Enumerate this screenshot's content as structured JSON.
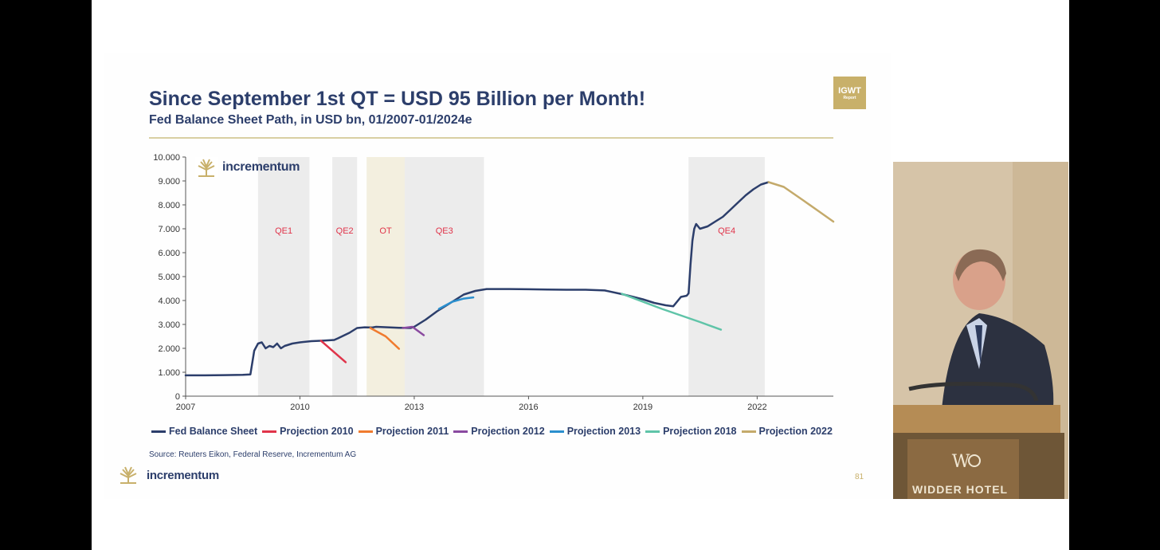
{
  "slide": {
    "title": "Since September 1st QT = USD 95 Billion per Month!",
    "subtitle": "Fed Balance Sheet Path, in USD bn, 01/2007-01/2024e",
    "badge": {
      "line1": "IGWT",
      "line2": "Report"
    },
    "source": "Source: Reuters Eikon, Federal Reserve, Incrementum AG",
    "brand": "incrementum",
    "page_number": "81",
    "colors": {
      "navy": "#2c3e6b",
      "gold": "#c8b06a",
      "shade": "#ececec",
      "ot_shade": "#f3efdf"
    }
  },
  "video": {
    "sign": "WIDDER HOTEL"
  },
  "chart_data": {
    "type": "line",
    "title": "Since September 1st QT = USD 95 Billion per Month!",
    "subtitle": "Fed Balance Sheet Path, in USD bn, 01/2007-01/2024e",
    "xlabel": "",
    "ylabel": "",
    "xlim": [
      2007,
      2024
    ],
    "ylim": [
      0,
      10000
    ],
    "y_ticks": [
      0,
      1000,
      2000,
      3000,
      4000,
      5000,
      6000,
      7000,
      8000,
      9000,
      10000
    ],
    "y_tick_labels": [
      "0",
      "1.000",
      "2.000",
      "3.000",
      "4.000",
      "5.000",
      "6.000",
      "7.000",
      "8.000",
      "9.000",
      "10.000"
    ],
    "x_ticks": [
      2007,
      2010,
      2013,
      2016,
      2019,
      2022
    ],
    "x_tick_labels": [
      "2007",
      "2010",
      "2013",
      "2016",
      "2019",
      "2022"
    ],
    "grid": false,
    "legend_position": "bottom",
    "shaded_periods": [
      {
        "label": "QE1",
        "start": 2008.9,
        "end": 2010.25,
        "kind": "qe"
      },
      {
        "label": "QE2",
        "start": 2010.85,
        "end": 2011.5,
        "kind": "qe"
      },
      {
        "label": "OT",
        "start": 2011.75,
        "end": 2012.75,
        "kind": "ot"
      },
      {
        "label": "QE3",
        "start": 2012.75,
        "end": 2014.83,
        "kind": "qe"
      },
      {
        "label": "QE4",
        "start": 2020.2,
        "end": 2022.2,
        "kind": "qe"
      }
    ],
    "series": [
      {
        "name": "Fed Balance Sheet",
        "color": "#2c3e6b",
        "width": 2.5,
        "x": [
          2007.0,
          2007.5,
          2008.0,
          2008.5,
          2008.7,
          2008.8,
          2008.9,
          2009.0,
          2009.1,
          2009.2,
          2009.3,
          2009.4,
          2009.5,
          2009.6,
          2009.7,
          2009.8,
          2010.0,
          2010.3,
          2010.6,
          2010.9,
          2011.0,
          2011.3,
          2011.5,
          2011.7,
          2011.9,
          2012.0,
          2012.3,
          2012.6,
          2012.9,
          2013.0,
          2013.3,
          2013.6,
          2014.0,
          2014.3,
          2014.6,
          2014.9,
          2015.5,
          2016.0,
          2016.5,
          2017.0,
          2017.5,
          2018.0,
          2018.5,
          2019.0,
          2019.3,
          2019.6,
          2019.8,
          2020.0,
          2020.15,
          2020.2,
          2020.25,
          2020.3,
          2020.35,
          2020.4,
          2020.5,
          2020.7,
          2020.9,
          2021.1,
          2021.3,
          2021.5,
          2021.7,
          2021.9,
          2022.1,
          2022.3
        ],
        "y": [
          870,
          870,
          880,
          890,
          910,
          1900,
          2200,
          2250,
          2000,
          2100,
          2050,
          2200,
          2000,
          2100,
          2150,
          2200,
          2250,
          2300,
          2320,
          2350,
          2420,
          2650,
          2850,
          2880,
          2870,
          2900,
          2880,
          2860,
          2850,
          2900,
          3200,
          3550,
          3950,
          4250,
          4400,
          4480,
          4480,
          4470,
          4460,
          4450,
          4450,
          4420,
          4250,
          4050,
          3900,
          3800,
          3760,
          4150,
          4200,
          4300,
          5500,
          6500,
          7000,
          7200,
          7000,
          7100,
          7300,
          7500,
          7800,
          8100,
          8400,
          8650,
          8850,
          8950
        ]
      },
      {
        "name": "Projection 2010",
        "color": "#e0344a",
        "width": 2.5,
        "x": [
          2010.55,
          2011.2
        ],
        "y": [
          2320,
          1420
        ]
      },
      {
        "name": "Projection 2011",
        "color": "#f07b2f",
        "width": 2.5,
        "x": [
          2011.85,
          2012.25,
          2012.6
        ],
        "y": [
          2850,
          2500,
          1980
        ]
      },
      {
        "name": "Projection 2012",
        "color": "#8a4aa0",
        "width": 2.5,
        "x": [
          2012.7,
          2012.95,
          2013.25
        ],
        "y": [
          2850,
          2900,
          2550
        ]
      },
      {
        "name": "Projection 2013",
        "color": "#2b8fce",
        "width": 2.5,
        "x": [
          2013.65,
          2014.0,
          2014.3,
          2014.55
        ],
        "y": [
          3650,
          3950,
          4080,
          4130
        ]
      },
      {
        "name": "Projection 2018",
        "color": "#5fc4a8",
        "width": 2.5,
        "x": [
          2018.45,
          2019.5,
          2020.5,
          2021.05
        ],
        "y": [
          4280,
          3650,
          3100,
          2780
        ]
      },
      {
        "name": "Projection 2022",
        "color": "#c4aa6b",
        "width": 2.5,
        "x": [
          2022.3,
          2022.7,
          2023.2,
          2023.6,
          2024.0
        ],
        "y": [
          8950,
          8750,
          8200,
          7750,
          7300
        ]
      }
    ]
  }
}
